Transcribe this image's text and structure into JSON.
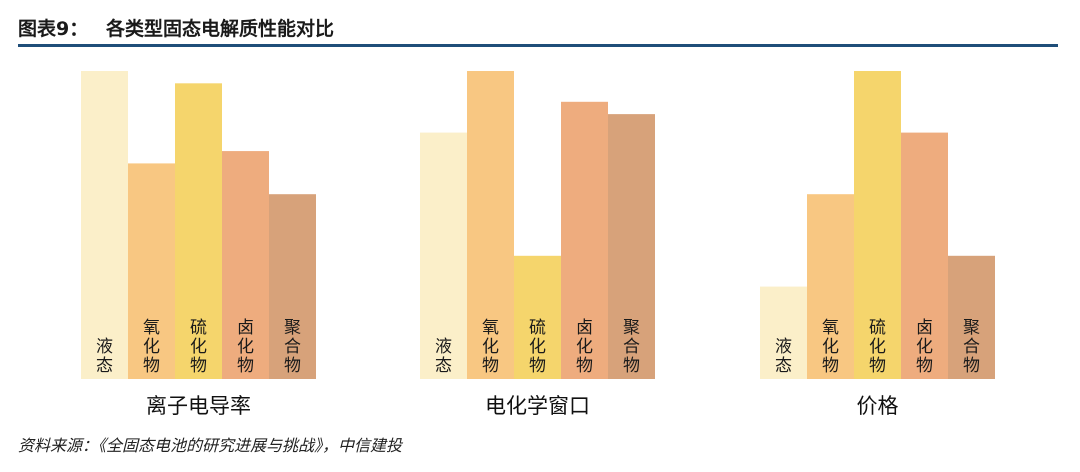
{
  "header": {
    "label": "图表9：",
    "title": "各类型固态电解质性能对比"
  },
  "source": "资料来源：《全固态电池的研究进展与挑战》，中信建投",
  "chart_data": [
    {
      "type": "bar",
      "title": "离子电导率",
      "categories": [
        "液态",
        "氧化物",
        "硫化物",
        "卤化物",
        "聚合物"
      ],
      "values": [
        100,
        70,
        96,
        74,
        60
      ],
      "ylim": [
        0,
        100
      ]
    },
    {
      "type": "bar",
      "title": "电化学窗口",
      "categories": [
        "液态",
        "氧化物",
        "硫化物",
        "卤化物",
        "聚合物"
      ],
      "values": [
        80,
        100,
        40,
        90,
        86
      ],
      "ylim": [
        0,
        100
      ]
    },
    {
      "type": "bar",
      "title": "价格",
      "categories": [
        "液态",
        "氧化物",
        "硫化物",
        "卤化物",
        "聚合物"
      ],
      "values": [
        30,
        60,
        100,
        80,
        40
      ],
      "ylim": [
        0,
        100
      ]
    }
  ],
  "colors": [
    "#fbefc9",
    "#f8c782",
    "#f5d56c",
    "#eeac7e",
    "#d7a27a"
  ]
}
